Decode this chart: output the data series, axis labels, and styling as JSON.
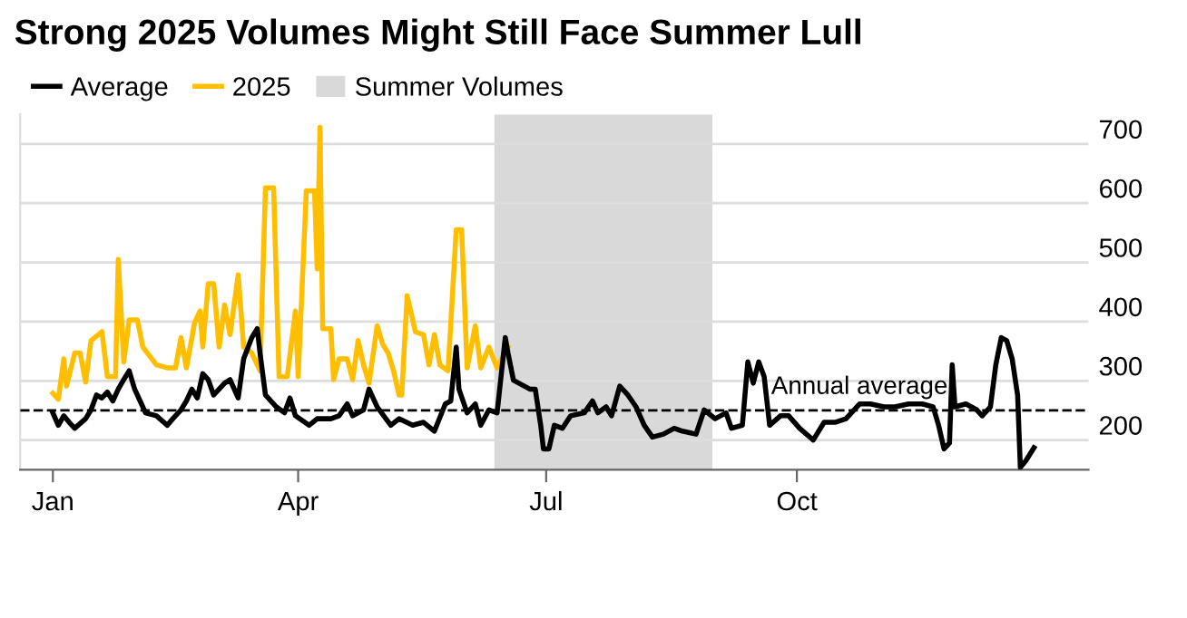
{
  "chart_data": {
    "type": "line",
    "title": "Strong 2025 Volumes Might Still Face Summer Lull",
    "series": [
      {
        "name": "Average",
        "color": "#000000",
        "x": [
          "2025-01-01",
          "2025-01-03",
          "2025-01-05",
          "2025-01-07",
          "2025-01-09",
          "2025-01-13",
          "2025-01-15",
          "2025-01-17",
          "2025-01-19",
          "2025-01-21",
          "2025-01-23",
          "2025-01-25",
          "2025-01-27",
          "2025-01-29",
          "2025-01-31",
          "2025-02-02",
          "2025-02-04",
          "2025-02-08",
          "2025-02-12",
          "2025-02-14",
          "2025-02-17",
          "2025-02-19",
          "2025-02-21",
          "2025-02-23",
          "2025-02-25",
          "2025-02-27",
          "2025-03-01",
          "2025-03-05",
          "2025-03-07",
          "2025-03-10",
          "2025-03-12",
          "2025-03-15",
          "2025-03-17",
          "2025-03-18",
          "2025-03-20",
          "2025-03-24",
          "2025-03-27",
          "2025-03-29",
          "2025-03-31",
          "2025-04-05",
          "2025-04-08",
          "2025-04-13",
          "2025-04-16",
          "2025-04-19",
          "2025-04-21",
          "2025-04-25",
          "2025-04-27",
          "2025-04-30",
          "2025-05-05",
          "2025-05-08",
          "2025-05-13",
          "2025-05-17",
          "2025-05-21",
          "2025-05-25",
          "2025-05-27",
          "2025-05-29",
          "2025-05-30",
          "2025-06-02",
          "2025-06-05",
          "2025-06-07",
          "2025-06-10",
          "2025-06-13",
          "2025-06-16",
          "2025-06-17",
          "2025-06-19",
          "2025-06-21",
          "2025-06-25",
          "2025-06-27",
          "2025-06-29",
          "2025-06-30",
          "2025-07-02",
          "2025-07-04",
          "2025-07-07",
          "2025-07-10",
          "2025-07-15",
          "2025-07-18",
          "2025-07-20",
          "2025-07-23",
          "2025-07-25",
          "2025-07-28",
          "2025-07-31",
          "2025-08-03",
          "2025-08-06",
          "2025-08-09",
          "2025-08-13",
          "2025-08-17",
          "2025-08-20",
          "2025-08-25",
          "2025-08-28",
          "2025-09-01",
          "2025-09-05",
          "2025-09-07",
          "2025-09-11",
          "2025-09-13",
          "2025-09-15",
          "2025-09-17",
          "2025-09-19",
          "2025-09-21",
          "2025-09-25",
          "2025-09-28",
          "2025-10-02",
          "2025-10-07",
          "2025-10-11",
          "2025-10-15",
          "2025-10-19",
          "2025-10-24",
          "2025-10-28",
          "2025-11-02",
          "2025-11-06",
          "2025-11-11",
          "2025-11-16",
          "2025-11-20",
          "2025-11-22",
          "2025-11-24",
          "2025-11-26",
          "2025-11-27",
          "2025-11-28",
          "2025-12-02",
          "2025-12-06",
          "2025-12-08",
          "2025-12-11",
          "2025-12-13",
          "2025-12-15",
          "2025-12-17",
          "2025-12-19",
          "2025-12-21",
          "2025-12-22",
          "2025-12-24",
          "2025-12-27"
        ],
        "values": [
          246,
          225,
          241,
          230,
          220,
          236,
          251,
          276,
          271,
          281,
          266,
          286,
          302,
          317,
          286,
          266,
          246,
          241,
          225,
          236,
          251,
          266,
          286,
          271,
          312,
          302,
          276,
          296,
          302,
          271,
          337,
          373,
          388,
          347,
          276,
          256,
          246,
          271,
          241,
          225,
          236,
          236,
          241,
          261,
          241,
          251,
          286,
          256,
          225,
          236,
          225,
          230,
          215,
          261,
          266,
          357,
          286,
          246,
          261,
          225,
          251,
          246,
          373,
          347,
          301,
          296,
          286,
          286,
          225,
          185,
          185,
          225,
          220,
          241,
          246,
          266,
          246,
          256,
          241,
          291,
          276,
          256,
          225,
          205,
          210,
          220,
          215,
          210,
          251,
          236,
          246,
          220,
          225,
          332,
          296,
          332,
          307,
          225,
          241,
          241,
          220,
          200,
          230,
          230,
          236,
          261,
          261,
          256,
          256,
          261,
          261,
          256,
          225,
          185,
          195,
          327,
          256,
          261,
          251,
          241,
          256,
          327,
          373,
          368,
          337,
          276,
          154,
          165,
          187
        ]
      },
      {
        "name": "2025",
        "color": "#ffbf00",
        "x": [
          "2025-01-01",
          "2025-01-03",
          "2025-01-05",
          "2025-01-06",
          "2025-01-09",
          "2025-01-11",
          "2025-01-13",
          "2025-01-15",
          "2025-01-19",
          "2025-01-21",
          "2025-01-24",
          "2025-01-25",
          "2025-01-27",
          "2025-01-29",
          "2025-02-01",
          "2025-02-03",
          "2025-02-08",
          "2025-02-12",
          "2025-02-15",
          "2025-02-17",
          "2025-02-19",
          "2025-02-22",
          "2025-02-24",
          "2025-02-25",
          "2025-02-27",
          "2025-03-01",
          "2025-03-03",
          "2025-03-05",
          "2025-03-07",
          "2025-03-10",
          "2025-03-12",
          "2025-03-15",
          "2025-03-18",
          "2025-03-20",
          "2025-03-23",
          "2025-03-25",
          "2025-03-28",
          "2025-03-31",
          "2025-04-01",
          "2025-04-04",
          "2025-04-07",
          "2025-04-08",
          "2025-04-09",
          "2025-04-10",
          "2025-04-13",
          "2025-04-14",
          "2025-04-16",
          "2025-04-19",
          "2025-04-21",
          "2025-04-23",
          "2025-04-25",
          "2025-04-27",
          "2025-04-30",
          "2025-05-02",
          "2025-05-04",
          "2025-05-06",
          "2025-05-08",
          "2025-05-09",
          "2025-05-11",
          "2025-05-14",
          "2025-05-17",
          "2025-05-19",
          "2025-05-21",
          "2025-05-23",
          "2025-05-26",
          "2025-05-29",
          "2025-05-31",
          "2025-06-02",
          "2025-06-05",
          "2025-06-07",
          "2025-06-10",
          "2025-06-13",
          "2025-06-17"
        ],
        "values": [
          279,
          269,
          337,
          291,
          347,
          347,
          298,
          368,
          383,
          307,
          307,
          505,
          332,
          403,
          403,
          357,
          327,
          322,
          322,
          373,
          322,
          398,
          418,
          357,
          464,
          464,
          357,
          428,
          378,
          479,
          357,
          347,
          317,
          626,
          626,
          307,
          307,
          418,
          307,
          621,
          621,
          489,
          728,
          388,
          388,
          302,
          337,
          337,
          302,
          368,
          327,
          296,
          393,
          362,
          347,
          317,
          276,
          276,
          444,
          383,
          378,
          327,
          378,
          327,
          317,
          555,
          555,
          322,
          393,
          322,
          357,
          322,
          357
        ]
      }
    ],
    "bands": [
      {
        "axis": "x",
        "from": "2025-06-12",
        "to": "2025-08-31",
        "label": "Summer Volumes",
        "color": "#d9d9d9"
      }
    ],
    "ref_lines": [
      {
        "axis": "y",
        "value": 250,
        "label": "Annual average",
        "color": "#000000",
        "line_style": "dashed"
      }
    ],
    "xlim": [
      "2024-12-20",
      "2026-01-16"
    ],
    "xticks": [
      {
        "value": "2025-01-01",
        "label": "Jan"
      },
      {
        "value": "2025-04-01",
        "label": "Apr"
      },
      {
        "value": "2025-07-01",
        "label": "Jul"
      },
      {
        "value": "2025-10-01",
        "label": "Oct"
      }
    ],
    "ylim": [
      150,
      750
    ],
    "yticks": [
      200,
      300,
      400,
      500,
      600,
      700
    ],
    "grid": "y",
    "legend": "top left",
    "marker": "none",
    "line_style": "solid"
  }
}
